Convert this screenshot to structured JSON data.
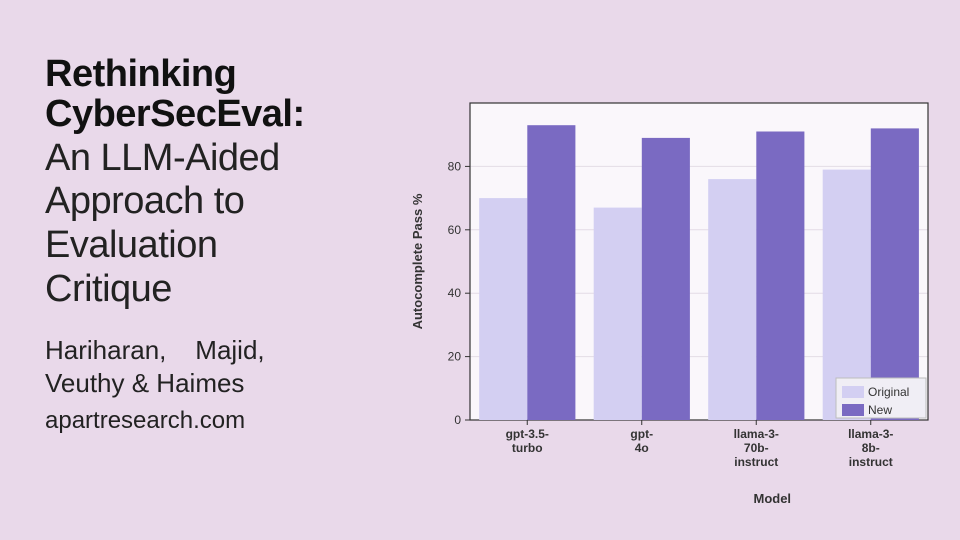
{
  "title_bold": "Rethinking CyberSecEval:",
  "title_light": "An LLM-Aided\nApproach to\nEvaluation\nCritique",
  "authors": "Hariharan,    Majid,\nVeuthy & Haimes",
  "site": "apartresearch.com",
  "chart": {
    "type": "bar-grouped",
    "background_color": "#e9d9ea",
    "plot_background_color": "#faf7fb",
    "plot_border_color": "#333333",
    "grid_color": "#e3dce6",
    "ylabel": "Autocomplete Pass %",
    "xlabel": "Model",
    "label_fontsize": 13,
    "label_fontweight": "bold",
    "tick_fontsize": 12,
    "ylim": [
      0,
      100
    ],
    "ytick_step": 20,
    "yticks": [
      0,
      20,
      40,
      60,
      80
    ],
    "categories": [
      "gpt-3.5-\nturbo",
      "gpt-\n4o",
      "llama-3-\n70b-\ninstruct",
      "llama-3-\n8b-\ninstruct"
    ],
    "series": [
      {
        "name": "Original",
        "color": "#d3cff2",
        "values": [
          70,
          67,
          76,
          79
        ]
      },
      {
        "name": "New",
        "color": "#7a6ac2",
        "values": [
          93,
          89,
          91,
          92
        ]
      }
    ],
    "bar_width": 0.42,
    "legend": {
      "position": "bottom-right",
      "background": "#f0eef5",
      "border_color": "#bdbdbd",
      "fontsize": 12
    }
  }
}
